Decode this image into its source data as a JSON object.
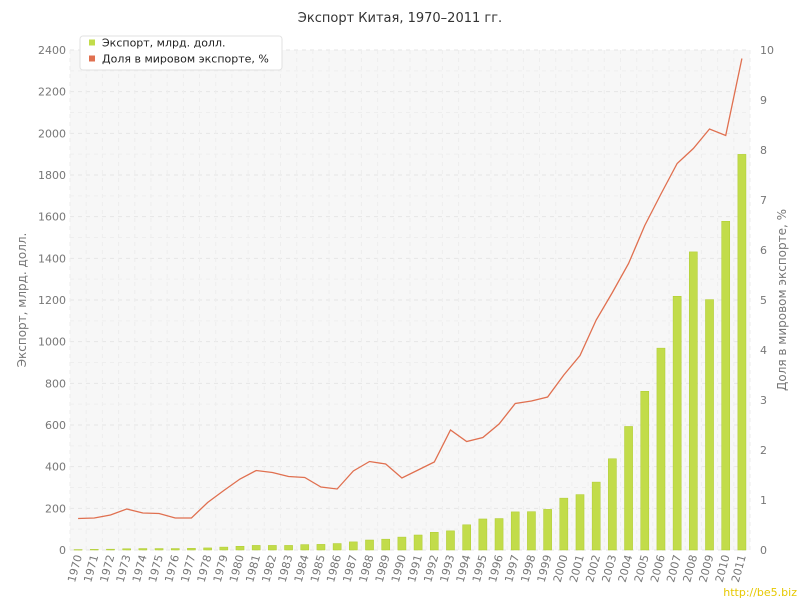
{
  "chart_data": {
    "type": "bar",
    "title": "Экспорт Китая, 1970–2011 гг.",
    "ylabel": "Экспорт, млрд. долл.",
    "y2label": "Доля в мировом экспорте, %",
    "ylim": [
      0,
      2400
    ],
    "y2lim": [
      0,
      10
    ],
    "yticks": [
      "0",
      "200",
      "400",
      "600",
      "800",
      "1000",
      "1200",
      "1400",
      "1600",
      "1800",
      "2000",
      "2200",
      "2400"
    ],
    "y2ticks": [
      "0",
      "1",
      "2",
      "3",
      "4",
      "5",
      "6",
      "7",
      "8",
      "9",
      "10"
    ],
    "grid": true,
    "legend_position": "top-left",
    "categories": [
      "1970",
      "1971",
      "1972",
      "1973",
      "1974",
      "1975",
      "1976",
      "1977",
      "1978",
      "1979",
      "1980",
      "1981",
      "1982",
      "1983",
      "1984",
      "1985",
      "1986",
      "1987",
      "1988",
      "1989",
      "1990",
      "1991",
      "1992",
      "1993",
      "1994",
      "1995",
      "1996",
      "1997",
      "1998",
      "1999",
      "2000",
      "2001",
      "2002",
      "2003",
      "2004",
      "2005",
      "2006",
      "2007",
      "2008",
      "2009",
      "2010",
      "2011"
    ],
    "series": [
      {
        "name": "Экспорт, млрд. долл.",
        "type": "bar",
        "axis": "left",
        "color": "#c2dc4a",
        "values": [
          2,
          3,
          4,
          6,
          7,
          7,
          7,
          8,
          10,
          14,
          18,
          22,
          22,
          22,
          26,
          27,
          31,
          39,
          48,
          52,
          62,
          72,
          85,
          92,
          121,
          149,
          151,
          183,
          184,
          195,
          249,
          266,
          326,
          438,
          593,
          762,
          969,
          1218,
          1431,
          1202,
          1578,
          1899
        ]
      },
      {
        "name": "Доля в мировом экспорте, %",
        "type": "line",
        "axis": "right",
        "color": "#e07050",
        "values": [
          0.63,
          0.64,
          0.7,
          0.82,
          0.74,
          0.73,
          0.64,
          0.64,
          0.95,
          1.19,
          1.42,
          1.59,
          1.55,
          1.47,
          1.45,
          1.26,
          1.22,
          1.58,
          1.77,
          1.72,
          1.44,
          1.6,
          1.76,
          2.4,
          2.17,
          2.25,
          2.52,
          2.93,
          2.98,
          3.06,
          3.5,
          3.89,
          4.6,
          5.15,
          5.73,
          6.49,
          7.12,
          7.73,
          8.03,
          8.42,
          8.29,
          9.83
        ]
      }
    ]
  },
  "watermark": "http://be5.biz"
}
